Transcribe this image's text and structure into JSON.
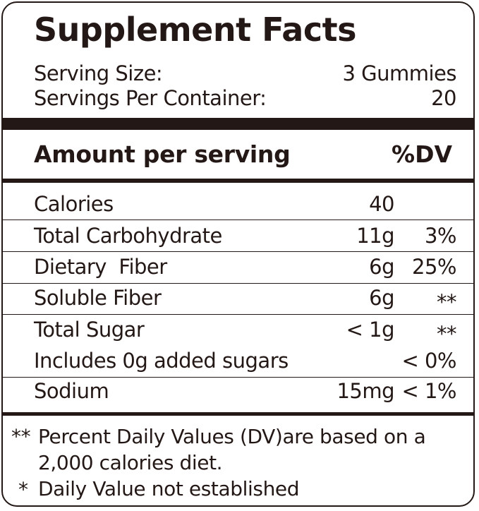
{
  "title": "Supplement Facts",
  "serving": {
    "size_label": "Serving Size:",
    "size_value": "3 Gummies",
    "per_container_label": "Servings Per Container:",
    "per_container_value": "20"
  },
  "header": {
    "amount_label": "Amount per serving",
    "dv_label": "%DV"
  },
  "rows": [
    {
      "name": "Calories",
      "amount": "40",
      "dv": ""
    },
    {
      "name": "Total Carbohydrate",
      "amount": "11g",
      "dv": "3%"
    },
    {
      "name": "Dietary  Fiber",
      "amount": "6g",
      "dv": "25%"
    },
    {
      "name": "Soluble Fiber",
      "amount": "6g",
      "dv": "**"
    },
    {
      "name": "Total Sugar",
      "amount": "< 1g",
      "dv": "**"
    },
    {
      "name": "Includes 0g added sugars",
      "amount": "",
      "dv": "< 0%"
    },
    {
      "name": "Sodium",
      "amount": "15mg",
      "dv": "< 1%"
    }
  ],
  "footnotes": {
    "line1_marker": "**",
    "line1_text": "Percent Daily Values (DV)are based on a",
    "line2_text": "2,000 calories diet.",
    "line3_marker": "*",
    "line3_text": "Daily Value not established"
  },
  "colors": {
    "ink": "#231815",
    "background": "#ffffff"
  }
}
